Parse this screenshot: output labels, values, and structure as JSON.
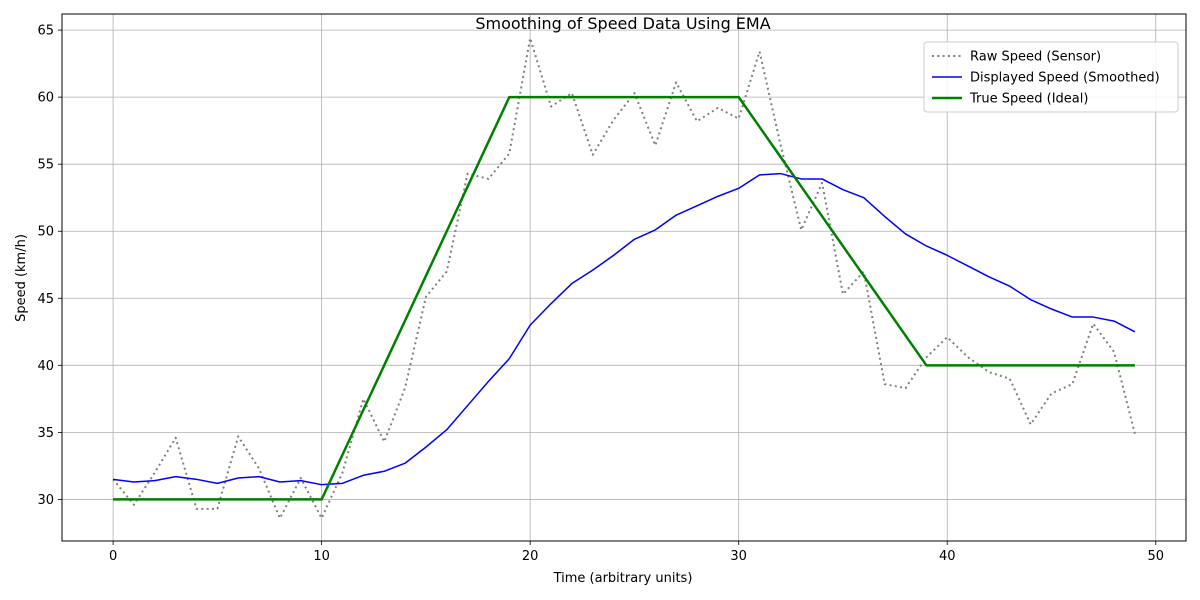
{
  "chart_data": {
    "type": "line",
    "title": "Smoothing of Speed Data Using EMA",
    "xlabel": "Time (arbitrary units)",
    "ylabel": "Speed (km/h)",
    "xlim": [
      -2.45,
      51.45
    ],
    "ylim": [
      26.9,
      66.2
    ],
    "xticks": [
      0,
      10,
      20,
      30,
      40,
      50
    ],
    "yticks": [
      30,
      35,
      40,
      45,
      50,
      55,
      60,
      65
    ],
    "grid": true,
    "legend_position": "top-right",
    "x": [
      0,
      1,
      2,
      3,
      4,
      5,
      6,
      7,
      8,
      9,
      10,
      11,
      12,
      13,
      14,
      15,
      16,
      17,
      18,
      19,
      20,
      21,
      22,
      23,
      24,
      25,
      26,
      27,
      28,
      29,
      30,
      31,
      32,
      33,
      34,
      35,
      36,
      37,
      38,
      39,
      40,
      41,
      42,
      43,
      44,
      45,
      46,
      47,
      48,
      49
    ],
    "series": [
      {
        "name": "Raw Speed (Sensor)",
        "color": "#808080",
        "style": "dotted",
        "values": [
          31.5,
          29.6,
          32.0,
          34.6,
          29.3,
          29.3,
          34.7,
          32.3,
          28.6,
          31.6,
          28.6,
          32.0,
          37.5,
          34.3,
          38.3,
          45.1,
          47.0,
          54.3,
          53.9,
          55.8,
          64.4,
          59.3,
          60.3,
          55.7,
          58.3,
          60.3,
          56.4,
          61.1,
          58.2,
          59.2,
          58.4,
          63.4,
          56.5,
          50.1,
          53.6,
          45.3,
          47.0,
          38.6,
          38.3,
          40.6,
          42.1,
          40.6,
          39.5,
          39.0,
          35.6,
          37.9,
          38.6,
          43.1,
          41.0,
          34.9
        ]
      },
      {
        "name": "Displayed Speed (Smoothed)",
        "color": "#0000ff",
        "style": "solid",
        "values": [
          31.5,
          31.3,
          31.4,
          31.7,
          31.5,
          31.2,
          31.6,
          31.7,
          31.3,
          31.4,
          31.1,
          31.2,
          31.8,
          32.1,
          32.7,
          33.9,
          35.2,
          37.0,
          38.8,
          40.5,
          43.0,
          44.6,
          46.1,
          47.1,
          48.2,
          49.4,
          50.1,
          51.2,
          51.9,
          52.6,
          53.2,
          54.2,
          54.3,
          53.9,
          53.9,
          53.1,
          52.5,
          51.1,
          49.8,
          48.9,
          48.2,
          47.4,
          46.6,
          45.9,
          44.9,
          44.2,
          43.6,
          43.6,
          43.3,
          42.5
        ]
      },
      {
        "name": "True Speed (Ideal)",
        "color": "#008000",
        "style": "solid-thick",
        "values": [
          30,
          30,
          30,
          30,
          30,
          30,
          30,
          30,
          30,
          30,
          30,
          33.3333,
          36.6667,
          40,
          43.3333,
          46.6667,
          50,
          53.3333,
          56.6667,
          60,
          60,
          60,
          60,
          60,
          60,
          60,
          60,
          60,
          60,
          60,
          60,
          57.7778,
          55.5556,
          53.3333,
          51.1111,
          48.8889,
          46.6667,
          44.4444,
          42.2222,
          40,
          40,
          40,
          40,
          40,
          40,
          40,
          40,
          40,
          40,
          40
        ]
      }
    ]
  }
}
